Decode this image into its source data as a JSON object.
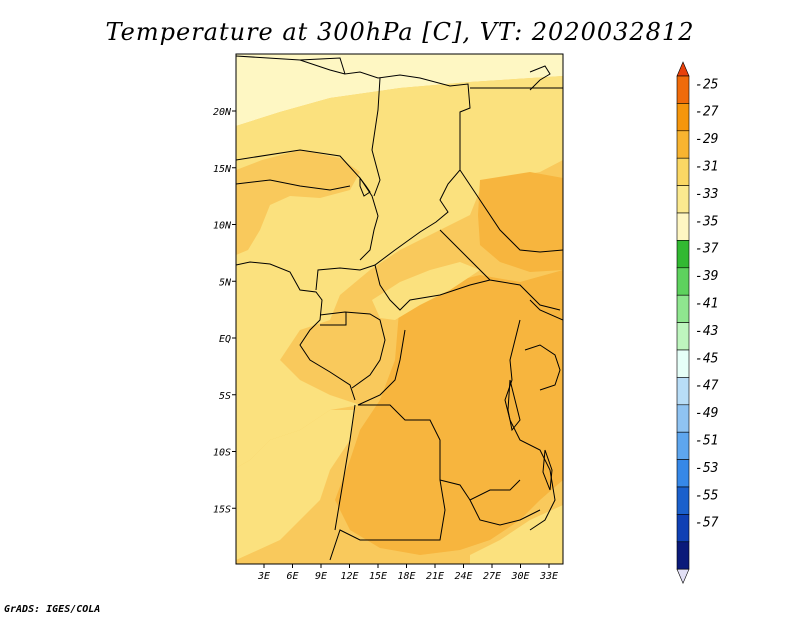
{
  "title": "Temperature at 300hPa [C], VT: 2020032812",
  "credit": "GrADS: IGES/COLA",
  "map": {
    "lat_labels": [
      "20N",
      "15N",
      "10N",
      "5N",
      "EQ",
      "5S",
      "10S",
      "15S"
    ],
    "lat_values": [
      20,
      15,
      10,
      5,
      0,
      -5,
      -10,
      -15
    ],
    "lon_labels": [
      "3E",
      "6E",
      "9E",
      "12E",
      "15E",
      "18E",
      "21E",
      "24E",
      "27E",
      "30E",
      "33E"
    ],
    "lon_values": [
      3,
      6,
      9,
      12,
      15,
      18,
      21,
      24,
      27,
      30,
      33
    ]
  },
  "colorbar": {
    "labels": [
      "-25",
      "-27",
      "-29",
      "-31",
      "-33",
      "-35",
      "-37",
      "-39",
      "-41",
      "-43",
      "-45",
      "-47",
      "-49",
      "-51",
      "-53",
      "-55",
      "-57"
    ],
    "colors": [
      "#f06b0a",
      "#f5960c",
      "#f8b430",
      "#fad764",
      "#fbe98f",
      "#fef6c2",
      "#32b932",
      "#5ed25e",
      "#8fe68f",
      "#bef5be",
      "#e6fff8",
      "#b8ddf7",
      "#8fc3f2",
      "#5ea6ee",
      "#3688e8",
      "#1b60cc",
      "#0f40b4",
      "#0a1a7a"
    ],
    "top_triangle_color": "#e8400a",
    "bottom_triangle_color": "#e2e0f6"
  },
  "colors": {
    "yellow_light": "#fef7c3",
    "yellow": "#fbe17e",
    "orange_light": "#f9c95c",
    "orange": "#f7b53e"
  }
}
